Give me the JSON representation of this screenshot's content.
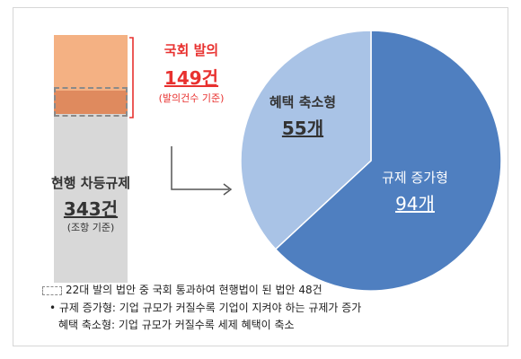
{
  "chart_data": [
    {
      "type": "bar",
      "stacked": true,
      "segments": [
        {
          "label": "현행 차등규제",
          "value": 343,
          "value_label": "343건",
          "note": "(조항 기준)",
          "color": "#d8d8d8"
        },
        {
          "label": "국회 발의",
          "value": 149,
          "value_label": "149건",
          "note": "(발의건수 기준)",
          "color": "#f4b183"
        }
      ],
      "highlight_value": 48,
      "highlight_color": "#df8a5e"
    },
    {
      "type": "pie",
      "slices": [
        {
          "label": "규제 증가형",
          "value": 94,
          "value_label": "94개",
          "color": "#4f7fc0"
        },
        {
          "label": "혜택 축소형",
          "value": 55,
          "value_label": "55개",
          "color": "#a9c3e6"
        }
      ]
    }
  ],
  "legend": {
    "dashed_note": "22대 발의 법안 중 국회 통과하여 현행법이 된 법안 48건",
    "bullet_1": "• 규제 증가형: 기업 규모가 커질수록 기업이 지켜야 하는 규제가 증가",
    "bullet_2": "혜택 축소형: 기업 규모가 커질수록 세제 혜택이 축소"
  },
  "colors": {
    "red": "#e8312f",
    "pie_dark": "#4f7fc0",
    "pie_light": "#a9c3e6"
  }
}
